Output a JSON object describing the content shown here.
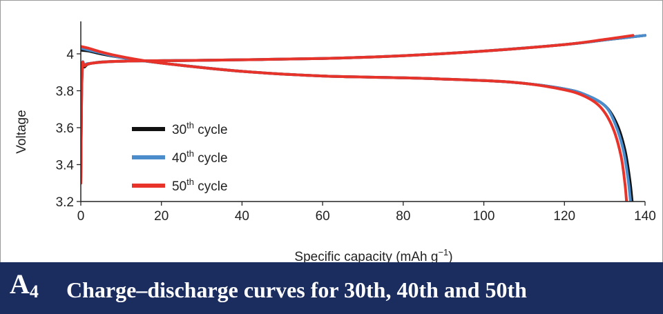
{
  "caption": {
    "label_letter": "A",
    "label_sub": "4",
    "text": "Charge–discharge curves for 30th, 40th and 50th"
  },
  "chart_data": {
    "type": "line",
    "title": "",
    "xlabel": "Specific capacity (mAh g",
    "xlabel_sup": "−1",
    "xlabel_end": ")",
    "ylabel": "Voltage",
    "xlim": [
      0,
      140
    ],
    "ylim": [
      3.2,
      4.15
    ],
    "xticks": [
      0,
      20,
      40,
      60,
      80,
      100,
      120,
      140
    ],
    "yticks": [
      3.2,
      3.4,
      3.6,
      3.8,
      4.0
    ],
    "ytick_labels": [
      "3.2",
      "3.4",
      "3.6",
      "3.8",
      "4"
    ],
    "grid": false,
    "legend_position": "left",
    "series": [
      {
        "name": "30",
        "name_sup": "th",
        "name_suffix": " cycle",
        "color": "#111111",
        "charge": [
          [
            0,
            3.3
          ],
          [
            0.3,
            3.88
          ],
          [
            1,
            3.93
          ],
          [
            3,
            3.95
          ],
          [
            10,
            3.96
          ],
          [
            30,
            3.965
          ],
          [
            60,
            3.975
          ],
          [
            80,
            3.99
          ],
          [
            100,
            4.015
          ],
          [
            120,
            4.05
          ],
          [
            130,
            4.075
          ],
          [
            140,
            4.1
          ]
        ],
        "discharge": [
          [
            0,
            4.02
          ],
          [
            2,
            4.015
          ],
          [
            5,
            4.0
          ],
          [
            10,
            3.98
          ],
          [
            20,
            3.95
          ],
          [
            40,
            3.905
          ],
          [
            60,
            3.88
          ],
          [
            80,
            3.87
          ],
          [
            100,
            3.855
          ],
          [
            110,
            3.84
          ],
          [
            120,
            3.81
          ],
          [
            125,
            3.78
          ],
          [
            130,
            3.72
          ],
          [
            133,
            3.62
          ],
          [
            135,
            3.48
          ],
          [
            136.2,
            3.32
          ],
          [
            136.8,
            3.2
          ]
        ]
      },
      {
        "name": "40",
        "name_sup": "th",
        "name_suffix": " cycle",
        "color": "#4a8ccc",
        "charge": [
          [
            0,
            3.3
          ],
          [
            0.3,
            3.9
          ],
          [
            1,
            3.94
          ],
          [
            3,
            3.95
          ],
          [
            10,
            3.96
          ],
          [
            30,
            3.965
          ],
          [
            60,
            3.975
          ],
          [
            80,
            3.99
          ],
          [
            100,
            4.015
          ],
          [
            120,
            4.05
          ],
          [
            130,
            4.075
          ],
          [
            140,
            4.1
          ]
        ],
        "discharge": [
          [
            0,
            4.03
          ],
          [
            2,
            4.02
          ],
          [
            5,
            4.005
          ],
          [
            10,
            3.98
          ],
          [
            20,
            3.95
          ],
          [
            40,
            3.905
          ],
          [
            60,
            3.88
          ],
          [
            80,
            3.87
          ],
          [
            100,
            3.855
          ],
          [
            110,
            3.84
          ],
          [
            120,
            3.81
          ],
          [
            125,
            3.78
          ],
          [
            130,
            3.72
          ],
          [
            132.6,
            3.62
          ],
          [
            134.6,
            3.48
          ],
          [
            135.8,
            3.32
          ],
          [
            136.4,
            3.2
          ]
        ]
      },
      {
        "name": "50",
        "name_sup": "th",
        "name_suffix": " cycle",
        "color": "#e8332a",
        "charge": [
          [
            0,
            3.3
          ],
          [
            0.3,
            3.9
          ],
          [
            1,
            3.935
          ],
          [
            3,
            3.95
          ],
          [
            10,
            3.96
          ],
          [
            30,
            3.965
          ],
          [
            60,
            3.975
          ],
          [
            80,
            3.99
          ],
          [
            100,
            4.015
          ],
          [
            120,
            4.05
          ],
          [
            130,
            4.078
          ],
          [
            137,
            4.1
          ]
        ],
        "discharge": [
          [
            0,
            4.04
          ],
          [
            2,
            4.03
          ],
          [
            5,
            4.01
          ],
          [
            10,
            3.985
          ],
          [
            20,
            3.95
          ],
          [
            40,
            3.905
          ],
          [
            60,
            3.88
          ],
          [
            80,
            3.87
          ],
          [
            100,
            3.855
          ],
          [
            110,
            3.84
          ],
          [
            120,
            3.805
          ],
          [
            125,
            3.77
          ],
          [
            129,
            3.71
          ],
          [
            132,
            3.6
          ],
          [
            134,
            3.45
          ],
          [
            135,
            3.3
          ],
          [
            135.4,
            3.2
          ]
        ]
      }
    ]
  }
}
